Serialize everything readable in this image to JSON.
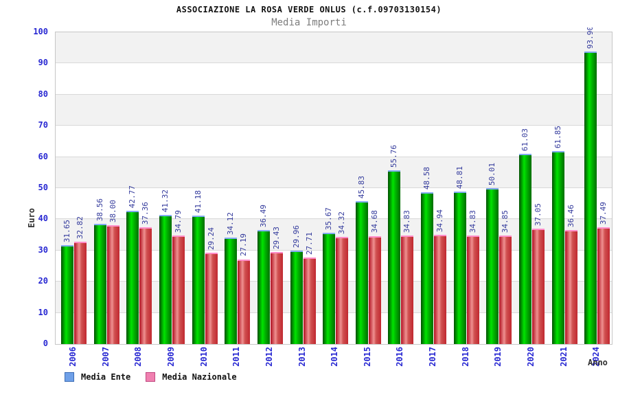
{
  "header": {
    "title": "ASSOCIAZIONE LA ROSA VERDE ONLUS (c.f.09703130154)",
    "subtitle": "Media Importi"
  },
  "axes": {
    "y_title": "Euro",
    "x_title": "Anno"
  },
  "colors": {
    "tick_label": "#2727d2",
    "value_label": "#333a9c",
    "band_gray": "#f2f2f2",
    "grid_line": "#d8d8d8",
    "plot_border": "#c6c6c6",
    "green_bar_gradient": [
      "#004f00",
      "#00e300",
      "#00b800",
      "#006c00"
    ],
    "green_bar_cap": "#82aaf0",
    "red_bar_gradient": [
      "#b01020",
      "#ef9090",
      "#d05050",
      "#c02830"
    ],
    "red_bar_cap": "#ff8cc8",
    "legend_ente_swatch": "#6fa0e8",
    "legend_ente_border": "#3c6cb4",
    "legend_nazionale_swatch": "#f080b0",
    "legend_nazionale_border": "#c04880"
  },
  "chart_data": {
    "type": "bar",
    "title": "ASSOCIAZIONE LA ROSA VERDE ONLUS (c.f.09703130154)",
    "subtitle": "Media Importi",
    "xlabel": "Anno",
    "ylabel": "Euro",
    "ylim": [
      0,
      100
    ],
    "ytick_step": 10,
    "grid": "horizontal-bands-alternating",
    "legend_position": "bottom-left",
    "value_labels": "rotated-90-above-bars-2-decimals",
    "categories": [
      "2006",
      "2007",
      "2008",
      "2009",
      "2010",
      "2011",
      "2012",
      "2013",
      "2014",
      "2015",
      "2016",
      "2017",
      "2018",
      "2019",
      "2020",
      "2021",
      "2024"
    ],
    "series": [
      {
        "name": "Media Ente",
        "values": [
          31.65,
          38.56,
          42.77,
          41.32,
          41.18,
          34.12,
          36.49,
          29.96,
          35.67,
          45.83,
          55.76,
          48.58,
          48.81,
          50.01,
          61.03,
          61.85,
          93.9
        ]
      },
      {
        "name": "Media Nazionale",
        "values": [
          32.82,
          38.0,
          37.36,
          34.79,
          29.24,
          27.19,
          29.43,
          27.71,
          34.32,
          34.68,
          34.83,
          34.94,
          34.83,
          34.85,
          37.05,
          36.46,
          37.49
        ]
      }
    ]
  }
}
